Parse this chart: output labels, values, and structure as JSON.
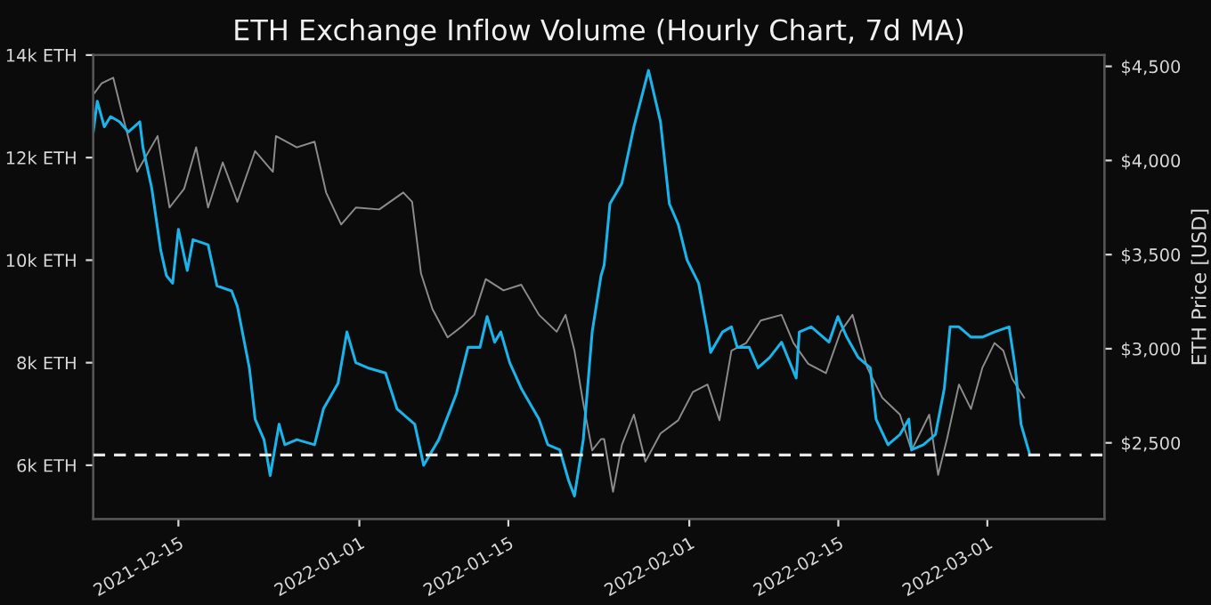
{
  "chart_data": {
    "type": "line",
    "title": "ETH Exchange Inflow Volume (Hourly Chart, 7d MA)",
    "y2label": "ETH Price [USD]",
    "xlim": [
      "2021-12-07",
      "2022-03-12"
    ],
    "xticks": [
      "2021-12-15",
      "2022-01-01",
      "2022-01-15",
      "2022-02-01",
      "2022-02-15",
      "2022-03-01"
    ],
    "ylim": [
      4950,
      14000
    ],
    "yticks": [
      {
        "value": 6000,
        "label": "6k ETH"
      },
      {
        "value": 8000,
        "label": "8k ETH"
      },
      {
        "value": 10000,
        "label": "10k ETH"
      },
      {
        "value": 12000,
        "label": "12k ETH"
      },
      {
        "value": 14000,
        "label": "14k ETH"
      }
    ],
    "y2lim": [
      2095,
      4560
    ],
    "y2ticks": [
      {
        "value": 2500,
        "label": "$2,500"
      },
      {
        "value": 3000,
        "label": "$3,000"
      },
      {
        "value": 3500,
        "label": "$3,500"
      },
      {
        "value": 4000,
        "label": "$4,000"
      },
      {
        "value": 4500,
        "label": "$4,500"
      }
    ],
    "grid": false,
    "ref_lines": [
      {
        "axis": "y",
        "value": 6200,
        "color": "#e8e8e8",
        "line_style": "dashed"
      }
    ],
    "series": [
      {
        "color": "#8c8c8c",
        "axis": "y2",
        "x": [
          "2021-12-07T00:00",
          "2021-12-07T19:00",
          "2021-12-08T21:00",
          "2021-12-09T17:00",
          "2021-12-11T03:00",
          "2021-12-13T01:00",
          "2021-12-14T04:00",
          "2021-12-15T13:00",
          "2021-12-16T16:00",
          "2021-12-17T19:00",
          "2021-12-19T04:00",
          "2021-12-20T13:00",
          "2021-12-22T05:00",
          "2021-12-23T21:00",
          "2021-12-24T04:00",
          "2021-12-26T03:00",
          "2021-12-27T19:00",
          "2021-12-28T21:00",
          "2021-12-30T07:00",
          "2021-12-31T16:00",
          "2022-01-02T21:00",
          "2022-01-05T03:00",
          "2022-01-05T23:00",
          "2022-01-06T19:00",
          "2022-01-07T21:00",
          "2022-01-09T07:00",
          "2022-01-10T16:00",
          "2022-01-11T19:00",
          "2022-01-12T21:00",
          "2022-01-14T13:00",
          "2022-01-16T05:00",
          "2022-01-17T21:00",
          "2022-01-19T13:00",
          "2022-01-20T09:00",
          "2022-01-21T05:00",
          "2022-01-22T01:00",
          "2022-01-22T21:00",
          "2022-01-23T17:00",
          "2022-01-24T00:00",
          "2022-01-24T20:00",
          "2022-01-25T16:00",
          "2022-01-26T19:00",
          "2022-01-27T21:00",
          "2022-01-29T07:00",
          "2022-01-30T23:00",
          "2022-02-01T08:00",
          "2022-02-02T17:00",
          "2022-02-03T20:00",
          "2022-02-04T23:00",
          "2022-02-06T08:00",
          "2022-02-07T17:00",
          "2022-02-09T16:00",
          "2022-02-10T19:00",
          "2022-02-12T04:00",
          "2022-02-13T20:00",
          "2022-02-15T05:00",
          "2022-02-16T08:00",
          "2022-02-17T17:00",
          "2022-02-19T03:00",
          "2022-02-20T19:00",
          "2022-02-21T21:00",
          "2022-02-23T13:00",
          "2022-02-24T09:00",
          "2022-02-25T05:00",
          "2022-02-26T08:00",
          "2022-02-27T11:00",
          "2022-02-28T13:00",
          "2022-03-01T16:00",
          "2022-03-02T12:00",
          "2022-03-03T08:00",
          "2022-03-04T11:00"
        ],
        "values": [
          4350,
          4410,
          4440,
          4250,
          3940,
          4130,
          3750,
          3850,
          4070,
          3750,
          3990,
          3780,
          4050,
          3940,
          4130,
          4070,
          4100,
          3830,
          3660,
          3750,
          3740,
          3830,
          3780,
          3400,
          3210,
          3060,
          3120,
          3180,
          3370,
          3310,
          3340,
          3180,
          3090,
          3180,
          2990,
          2710,
          2460,
          2520,
          2520,
          2240,
          2490,
          2650,
          2400,
          2550,
          2620,
          2770,
          2810,
          2620,
          2990,
          3030,
          3150,
          3180,
          3030,
          2920,
          2870,
          3090,
          3180,
          2900,
          2740,
          2650,
          2460,
          2650,
          2330,
          2520,
          2810,
          2680,
          2900,
          3030,
          2990,
          2840,
          2740
        ]
      },
      {
        "color": "#1ab4ea",
        "axis": "y",
        "x": [
          "2021-12-07T00:00",
          "2021-12-07T09:00",
          "2021-12-08T01:00",
          "2021-12-08T15:00",
          "2021-12-09T11:00",
          "2021-12-10T07:00",
          "2021-12-11T09:00",
          "2021-12-11T16:00",
          "2021-12-12T12:00",
          "2021-12-13T08:00",
          "2021-12-13T21:00",
          "2021-12-14T11:00",
          "2021-12-15T00:00",
          "2021-12-15T20:00",
          "2021-12-16T09:00",
          "2021-12-17T19:00",
          "2021-12-18T15:00",
          "2021-12-20T00:00",
          "2021-12-20T13:00",
          "2021-12-21T16:00",
          "2021-12-22T05:00",
          "2021-12-23T01:00",
          "2021-12-23T15:00",
          "2021-12-24T11:00",
          "2021-12-25T00:00",
          "2021-12-26T03:00",
          "2021-12-27T19:00",
          "2021-12-28T15:00",
          "2021-12-30T00:00",
          "2021-12-30T20:00",
          "2021-12-31T16:00",
          "2022-01-01T19:00",
          "2022-01-03T11:00",
          "2022-01-04T13:00",
          "2022-01-06T05:00",
          "2022-01-07T01:00",
          "2022-01-08T11:00",
          "2022-01-10T03:00",
          "2022-01-11T05:00",
          "2022-01-12T08:00",
          "2022-01-13T00:00",
          "2022-01-13T17:00",
          "2022-01-14T07:00",
          "2022-01-15T03:00",
          "2022-01-16T05:00",
          "2022-01-17T21:00",
          "2022-01-18T17:00",
          "2022-01-19T20:00",
          "2022-01-20T16:00",
          "2022-01-21T05:00",
          "2022-01-22T01:00",
          "2022-01-22T21:00",
          "2022-01-23T17:00",
          "2022-01-24T00:00",
          "2022-01-24T13:00",
          "2022-01-25T16:00",
          "2022-01-26T19:00",
          "2022-01-28T04:00",
          "2022-01-29T07:00",
          "2022-01-30T03:00",
          "2022-01-30T23:00",
          "2022-01-31T19:00",
          "2022-02-01T21:00",
          "2022-02-02T17:00",
          "2022-02-03T00:00",
          "2022-02-04T03:00",
          "2022-02-04T23:00",
          "2022-02-05T12:00",
          "2022-02-06T15:00",
          "2022-02-07T11:00",
          "2022-02-08T13:00",
          "2022-02-09T16:00",
          "2022-02-11T01:00",
          "2022-02-11T08:00",
          "2022-02-12T11:00",
          "2022-02-14T03:00",
          "2022-02-14T23:00",
          "2022-02-15T19:00",
          "2022-02-16T21:00",
          "2022-02-18T00:00",
          "2022-02-18T13:00",
          "2022-02-19T16:00",
          "2022-02-20T19:00",
          "2022-02-21T15:00",
          "2022-02-21T21:00",
          "2022-02-23T00:00",
          "2022-02-24T03:00",
          "2022-02-24T23:00",
          "2022-02-25T12:00",
          "2022-02-26T08:00",
          "2022-02-27T11:00",
          "2022-02-28T13:00",
          "2022-03-01T16:00",
          "2022-03-03T01:00",
          "2022-03-03T15:00",
          "2022-03-04T04:00",
          "2022-03-05T00:00"
        ],
        "values": [
          12500,
          13100,
          12600,
          12800,
          12700,
          12500,
          12700,
          12200,
          11400,
          10200,
          9700,
          9550,
          10600,
          9800,
          10400,
          10300,
          9500,
          9400,
          9100,
          7900,
          6900,
          6500,
          5800,
          6800,
          6400,
          6500,
          6400,
          7100,
          7600,
          8600,
          8000,
          7900,
          7800,
          7100,
          6800,
          6000,
          6500,
          7400,
          8300,
          8300,
          8900,
          8400,
          8600,
          8000,
          7500,
          6900,
          6400,
          6300,
          5700,
          5400,
          6500,
          8600,
          9700,
          9900,
          11100,
          11500,
          12600,
          13700,
          12700,
          11100,
          10700,
          10000,
          9550,
          8600,
          8200,
          8600,
          8700,
          8300,
          8300,
          7900,
          8100,
          8400,
          7700,
          8600,
          8700,
          8400,
          8900,
          8500,
          8100,
          7900,
          6900,
          6400,
          6600,
          6900,
          6300,
          6400,
          6600,
          7500,
          8700,
          8700,
          8500,
          8500,
          8600,
          8700,
          7900,
          6800,
          6200
        ]
      }
    ]
  }
}
